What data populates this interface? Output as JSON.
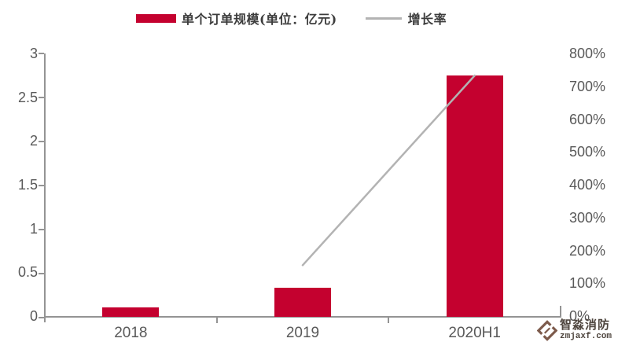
{
  "legend": {
    "items": [
      {
        "label": "单个订单规模(单位：亿元)",
        "marker": "bar-swatch"
      },
      {
        "label": "增长率",
        "marker": "line-swatch"
      }
    ],
    "position": "top-center"
  },
  "chart_data": {
    "type": "bar",
    "subtype": "bar-line-combo-dual-axis",
    "title": "",
    "categories": [
      "2018",
      "2019",
      "2020H1"
    ],
    "series": [
      {
        "name": "单个订单规模(单位：亿元)",
        "type": "bar",
        "yaxis": "left",
        "values": [
          0.11,
          0.33,
          2.75
        ]
      },
      {
        "name": "增长率",
        "type": "line",
        "yaxis": "right",
        "unit": "%",
        "values": [
          null,
          157,
          733
        ]
      }
    ],
    "left_axis": {
      "min": 0,
      "max": 3,
      "ticks": [
        "0",
        "0.5",
        "1",
        "1.5",
        "2",
        "2.5",
        "3"
      ]
    },
    "right_axis": {
      "min": 0,
      "max": 800,
      "ticks": [
        "0%",
        "100%",
        "200%",
        "300%",
        "400%",
        "500%",
        "600%",
        "700%",
        "800%"
      ]
    },
    "grid": false,
    "legend_position": "top"
  },
  "colors": {
    "bar": "#C4012F",
    "line": "#B3B3B3",
    "axis": "#949494",
    "tick_text": "#595959",
    "legend_text": "#3C3C3C",
    "watermark": "#7D5B4C"
  },
  "watermark": {
    "brand": "智淼消防",
    "domain": "zmjaxf.com"
  }
}
